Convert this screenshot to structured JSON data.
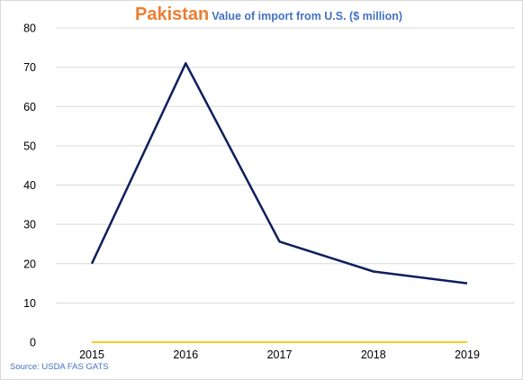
{
  "header": {
    "title": "Pakistan",
    "subtitle": "Value of import from U.S. ($ million)"
  },
  "footer": {
    "source": "Source: USDA FAS GATS"
  },
  "colors": {
    "title": "#ed7d31",
    "subtitle": "#4472c4",
    "series_main": "#0d1f5c",
    "series_secondary": "#ffc000",
    "gridline": "#d9d9d9"
  },
  "chart_data": {
    "type": "line",
    "title": "Pakistan",
    "subtitle": "Value of import from U.S. ($ million)",
    "xlabel": "",
    "ylabel": "",
    "categories": [
      "2015",
      "2016",
      "2017",
      "2018",
      "2019"
    ],
    "ylim": [
      0,
      80
    ],
    "yticks": [
      0,
      10,
      20,
      30,
      40,
      50,
      60,
      70,
      80
    ],
    "grid": true,
    "legend": "none",
    "series": [
      {
        "values": [
          20,
          71,
          25.6,
          18,
          15
        ]
      },
      {
        "values": [
          0,
          0,
          0,
          0,
          0
        ]
      }
    ]
  }
}
